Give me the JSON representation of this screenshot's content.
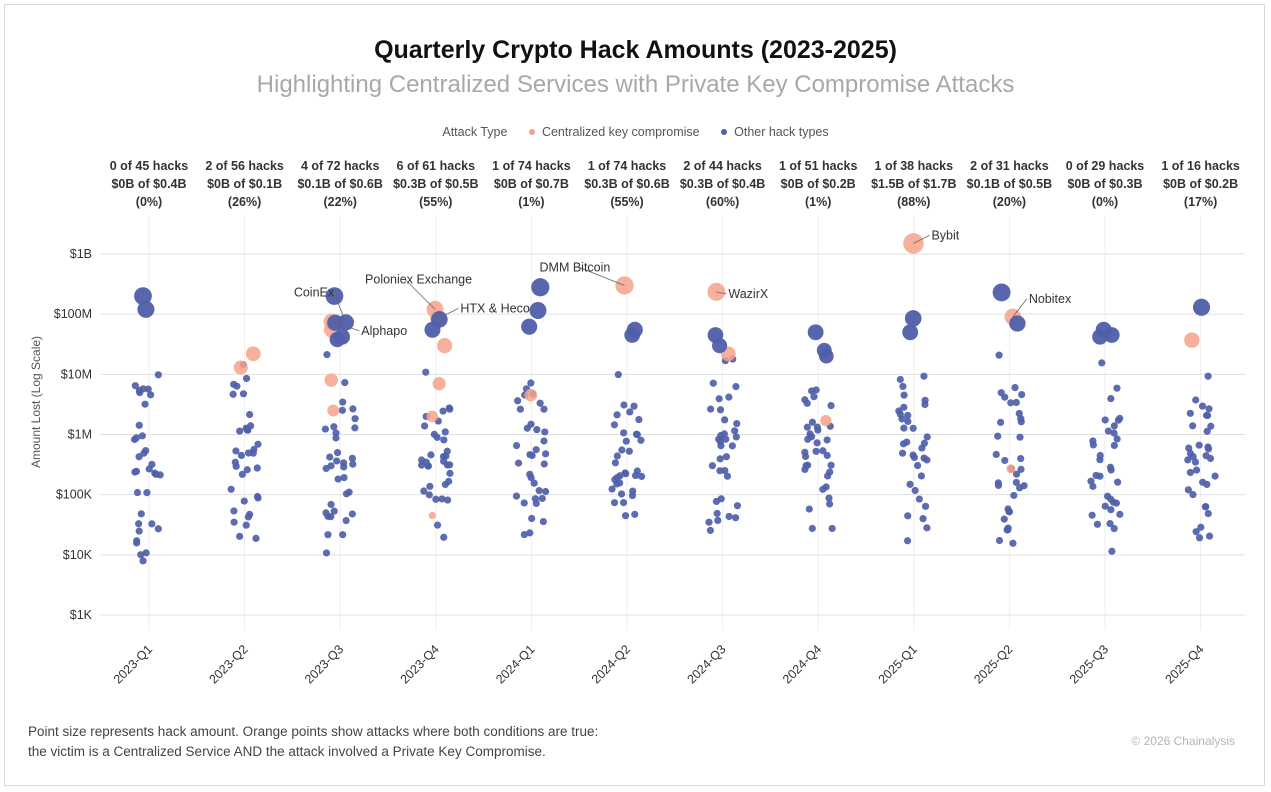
{
  "title": "Quarterly Crypto Hack Amounts (2023-2025)",
  "subtitle": "Highlighting Centralized Services with Private Key Compromise Attacks",
  "legend": {
    "heading": "Attack Type",
    "items": [
      {
        "label": "Centralized key compromise",
        "color": "#f4a28a"
      },
      {
        "label": "Other hack types",
        "color": "#4f5fa9"
      }
    ]
  },
  "footnote": "Point size represents hack amount. Orange points show attacks where both conditions are true:\nthe victim is a Centralized Service AND the attack involved a Private Key Compromise.",
  "copyright": "© 2026 Chainalysis",
  "colors": {
    "ckc": "#f4a28a",
    "other": "#4f5fa9",
    "grid": "#e0e0e0"
  },
  "chart_data": {
    "type": "scatter",
    "y_scale": "log",
    "ylabel": "Amount Lost (Log Scale)",
    "ylim": [
      600,
      2500000000
    ],
    "y_ticks": [
      {
        "value": 1000,
        "label": "$1K"
      },
      {
        "value": 10000,
        "label": "$10K"
      },
      {
        "value": 100000,
        "label": "$100K"
      },
      {
        "value": 1000000,
        "label": "$1M"
      },
      {
        "value": 10000000,
        "label": "$10M"
      },
      {
        "value": 100000000,
        "label": "$100M"
      },
      {
        "value": 1000000000,
        "label": "$1B"
      }
    ],
    "categories": [
      "2023-Q1",
      "2023-Q2",
      "2023-Q3",
      "2023-Q4",
      "2024-Q1",
      "2024-Q2",
      "2024-Q3",
      "2024-Q4",
      "2025-Q1",
      "2025-Q2",
      "2025-Q3",
      "2025-Q4"
    ],
    "quarter_stats": [
      {
        "hacks": "0 of 45 hacks",
        "amount": "$0B of $0.4B",
        "pct": "(0%)"
      },
      {
        "hacks": "2 of 56 hacks",
        "amount": "$0B of $0.1B",
        "pct": "(26%)"
      },
      {
        "hacks": "4 of 72 hacks",
        "amount": "$0.1B of $0.6B",
        "pct": "(22%)"
      },
      {
        "hacks": "6 of 61 hacks",
        "amount": "$0.3B of $0.5B",
        "pct": "(55%)"
      },
      {
        "hacks": "1 of 74 hacks",
        "amount": "$0B of $0.7B",
        "pct": "(1%)"
      },
      {
        "hacks": "1 of 74 hacks",
        "amount": "$0.3B of $0.6B",
        "pct": "(55%)"
      },
      {
        "hacks": "2 of 44 hacks",
        "amount": "$0.3B of $0.4B",
        "pct": "(60%)"
      },
      {
        "hacks": "1 of 51 hacks",
        "amount": "$0B of $0.2B",
        "pct": "(1%)"
      },
      {
        "hacks": "1 of 38 hacks",
        "amount": "$1.5B of $1.7B",
        "pct": "(88%)"
      },
      {
        "hacks": "2 of 31 hacks",
        "amount": "$0.1B of $0.5B",
        "pct": "(20%)"
      },
      {
        "hacks": "0 of 29 hacks",
        "amount": "$0B of $0.3B",
        "pct": "(0%)"
      },
      {
        "hacks": "1 of 16 hacks",
        "amount": "$0B of $0.2B",
        "pct": "(17%)"
      }
    ],
    "series": [
      {
        "name": "Centralized key compromise",
        "points": [
          {
            "q": 1,
            "y": 22000000
          },
          {
            "q": 1,
            "y": 13000000
          },
          {
            "q": 2,
            "y": 75000000
          },
          {
            "q": 2,
            "y": 55000000
          },
          {
            "q": 2,
            "y": 8000000
          },
          {
            "q": 2,
            "y": 2500000
          },
          {
            "q": 3,
            "y": 120000000
          },
          {
            "q": 3,
            "y": 85000000
          },
          {
            "q": 3,
            "y": 30000000
          },
          {
            "q": 3,
            "y": 7000000
          },
          {
            "q": 3,
            "y": 2000000
          },
          {
            "q": 3,
            "y": 45000
          },
          {
            "q": 4,
            "y": 4500000
          },
          {
            "q": 5,
            "y": 300000000
          },
          {
            "q": 6,
            "y": 235000000
          },
          {
            "q": 6,
            "y": 22000000
          },
          {
            "q": 7,
            "y": 1700000
          },
          {
            "q": 8,
            "y": 1500000000
          },
          {
            "q": 9,
            "y": 90000000
          },
          {
            "q": 9,
            "y": 270000
          },
          {
            "q": 11,
            "y": 37000000
          }
        ]
      },
      {
        "name": "Other hack types",
        "points": [
          {
            "q": 0,
            "y": 200000000
          },
          {
            "q": 0,
            "y": 120000000
          },
          {
            "q": 2,
            "y": 200000000
          },
          {
            "q": 2,
            "y": 73000000
          },
          {
            "q": 2,
            "y": 72000000
          },
          {
            "q": 2,
            "y": 42000000
          },
          {
            "q": 2,
            "y": 38000000
          },
          {
            "q": 3,
            "y": 82000000
          },
          {
            "q": 3,
            "y": 55000000
          },
          {
            "q": 4,
            "y": 280000000
          },
          {
            "q": 4,
            "y": 115000000
          },
          {
            "q": 4,
            "y": 62000000
          },
          {
            "q": 5,
            "y": 55000000
          },
          {
            "q": 5,
            "y": 45000000
          },
          {
            "q": 6,
            "y": 45000000
          },
          {
            "q": 6,
            "y": 30000000
          },
          {
            "q": 7,
            "y": 50000000
          },
          {
            "q": 7,
            "y": 25000000
          },
          {
            "q": 7,
            "y": 20000000
          },
          {
            "q": 8,
            "y": 85000000
          },
          {
            "q": 8,
            "y": 50000000
          },
          {
            "q": 9,
            "y": 230000000
          },
          {
            "q": 9,
            "y": 70000000
          },
          {
            "q": 10,
            "y": 55000000
          },
          {
            "q": 10,
            "y": 45000000
          },
          {
            "q": 10,
            "y": 42000000
          },
          {
            "q": 11,
            "y": 130000000
          }
        ]
      }
    ],
    "annotations": [
      {
        "label": "CoinEx",
        "q": 2,
        "y": 73000000
      },
      {
        "label": "Alphapo",
        "q": 2,
        "y": 72000000
      },
      {
        "label": "Poloniex Exchange",
        "q": 3,
        "y": 120000000
      },
      {
        "label": "HTX & Heco",
        "q": 3,
        "y": 85000000
      },
      {
        "label": "DMM Bitcoin",
        "q": 5,
        "y": 300000000
      },
      {
        "label": "WazirX",
        "q": 6,
        "y": 235000000
      },
      {
        "label": "Bybit",
        "q": 8,
        "y": 1500000000
      },
      {
        "label": "Nobitex",
        "q": 9,
        "y": 90000000
      }
    ]
  }
}
